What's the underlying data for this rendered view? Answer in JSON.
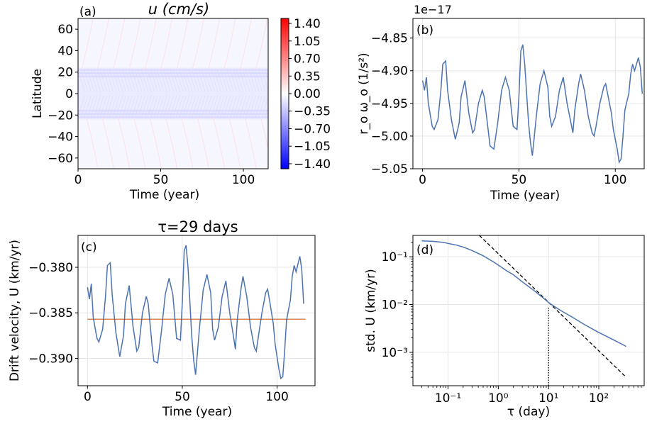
{
  "chart_data": [
    {
      "id": "a",
      "type": "heatmap",
      "panel_label": "(a)",
      "title": "u (cm/s)",
      "xlabel": "Time (year)",
      "ylabel": "Latitude",
      "xlim": [
        0,
        115
      ],
      "ylim": [
        -70,
        70
      ],
      "xticks": [
        0,
        50,
        100
      ],
      "yticks": [
        -60,
        -40,
        -20,
        0,
        20,
        40,
        60
      ],
      "colorbar": {
        "min": -1.5,
        "max": 1.5,
        "ticks": [
          "1.40",
          "1.05",
          "0.70",
          "0.35",
          "0.00",
          "−0.35",
          "−0.70",
          "−1.05",
          "−1.40"
        ],
        "tick_values": [
          1.4,
          1.05,
          0.7,
          0.35,
          0.0,
          -0.35,
          -0.7,
          -1.05,
          -1.4
        ],
        "colormap": "bwr",
        "colors": {
          "neg": "#0000ff",
          "mid": "#ffffff",
          "pos": "#ff0000"
        }
      },
      "field": {
        "background_level": -0.02,
        "equatorial_band_lat": [
          -24,
          24
        ],
        "equatorial_band_level": -0.12,
        "stripe_lats": [
          22,
          19,
          16,
          -16,
          -19,
          -22
        ],
        "stripe_level": -0.3,
        "migrating_streak_level": 0.2,
        "migrating_streak_count": 12
      }
    },
    {
      "id": "b",
      "type": "line",
      "panel_label": "(b)",
      "xlabel": "Time (year)",
      "ylabel": "r_o ω_o (1/s²)",
      "offset_text": "1e−17",
      "xlim": [
        -5,
        115
      ],
      "ylim": [
        -5.05,
        -4.82
      ],
      "xticks": [
        0,
        50,
        100
      ],
      "yticks": [
        -5.05,
        -5.0,
        -4.95,
        -4.9,
        -4.85
      ],
      "ytick_labels": [
        "−5.05",
        "−5.00",
        "−4.95",
        "−4.90",
        "−4.85"
      ],
      "line_color": "#4c72b0",
      "series": [
        {
          "x": [
            0,
            1,
            2,
            3,
            5,
            6,
            8,
            9.5,
            10.5,
            12,
            13,
            15,
            16,
            17,
            19,
            20,
            22,
            24,
            26,
            27,
            29,
            31,
            32,
            34,
            35,
            37,
            39,
            41,
            43,
            45,
            47,
            49,
            50,
            51,
            52,
            53,
            55,
            56,
            57,
            59,
            61,
            63,
            65,
            66,
            67,
            69,
            71,
            73,
            75,
            77,
            78,
            79,
            81,
            82,
            84,
            86,
            88,
            89,
            90,
            92,
            94,
            95,
            96,
            98,
            99,
            101,
            102,
            103,
            104,
            105,
            107,
            108,
            109,
            110,
            112,
            113,
            114
          ],
          "y": [
            -4.915,
            -4.93,
            -4.91,
            -4.95,
            -4.985,
            -4.99,
            -4.975,
            -4.93,
            -4.89,
            -4.885,
            -4.93,
            -4.975,
            -4.99,
            -5.005,
            -4.98,
            -4.94,
            -4.915,
            -4.965,
            -4.995,
            -4.99,
            -4.95,
            -4.93,
            -4.94,
            -4.99,
            -5.015,
            -5.02,
            -4.98,
            -4.93,
            -4.91,
            -4.93,
            -4.985,
            -4.99,
            -4.94,
            -4.87,
            -4.86,
            -4.89,
            -4.98,
            -5.01,
            -5.03,
            -4.97,
            -4.92,
            -4.9,
            -4.925,
            -4.97,
            -4.985,
            -4.97,
            -4.93,
            -4.91,
            -4.95,
            -4.98,
            -4.995,
            -4.96,
            -4.92,
            -4.905,
            -4.93,
            -4.97,
            -4.995,
            -5.0,
            -4.985,
            -4.95,
            -4.925,
            -4.92,
            -4.935,
            -4.965,
            -4.99,
            -5.02,
            -5.04,
            -5.035,
            -5.0,
            -4.96,
            -4.935,
            -4.905,
            -4.89,
            -4.9,
            -4.88,
            -4.895,
            -4.935
          ]
        }
      ]
    },
    {
      "id": "c",
      "type": "line",
      "panel_label": "(c)",
      "title": "τ=29 days",
      "xlabel": "Time (year)",
      "ylabel": "Drift velocity, U (km/yr)",
      "xlim": [
        -5,
        120
      ],
      "ylim": [
        -0.393,
        -0.3765
      ],
      "xticks": [
        0,
        50,
        100
      ],
      "yticks": [
        -0.39,
        -0.385,
        -0.38
      ],
      "ytick_labels": [
        "−0.390",
        "−0.385",
        "−0.380"
      ],
      "line_color": "#4c72b0",
      "mean_line": {
        "value": -0.3857,
        "x_range": [
          0,
          115
        ],
        "color": "#dd8452"
      },
      "series": [
        {
          "x": [
            0,
            1,
            2,
            3,
            5,
            6,
            8,
            9.5,
            10.5,
            12,
            13,
            15,
            16,
            17,
            19,
            20,
            22,
            24,
            26,
            27,
            29,
            31,
            32,
            34,
            35,
            37,
            39,
            41,
            43,
            45,
            47,
            49,
            50,
            51,
            52,
            53,
            55,
            56,
            57,
            59,
            61,
            63,
            65,
            66,
            67,
            69,
            71,
            73,
            75,
            77,
            78,
            79,
            81,
            82,
            84,
            86,
            88,
            89,
            90,
            92,
            94,
            95,
            96,
            98,
            99,
            101,
            102,
            103,
            104,
            105,
            107,
            108,
            109,
            110,
            112,
            113,
            114
          ],
          "y": [
            -0.3822,
            -0.3835,
            -0.3818,
            -0.3855,
            -0.3878,
            -0.3882,
            -0.3868,
            -0.3832,
            -0.3798,
            -0.3795,
            -0.383,
            -0.3872,
            -0.3885,
            -0.3898,
            -0.3875,
            -0.384,
            -0.382,
            -0.3865,
            -0.3892,
            -0.3888,
            -0.385,
            -0.3832,
            -0.384,
            -0.3885,
            -0.3903,
            -0.3905,
            -0.387,
            -0.383,
            -0.3812,
            -0.383,
            -0.3878,
            -0.388,
            -0.3838,
            -0.3782,
            -0.3776,
            -0.38,
            -0.3876,
            -0.3902,
            -0.3918,
            -0.3868,
            -0.3825,
            -0.3808,
            -0.3828,
            -0.3868,
            -0.388,
            -0.3866,
            -0.3832,
            -0.3815,
            -0.385,
            -0.3876,
            -0.389,
            -0.3858,
            -0.3823,
            -0.381,
            -0.3832,
            -0.3866,
            -0.3888,
            -0.3892,
            -0.3878,
            -0.385,
            -0.3828,
            -0.3824,
            -0.3836,
            -0.3862,
            -0.3885,
            -0.3912,
            -0.3922,
            -0.392,
            -0.3892,
            -0.3858,
            -0.3836,
            -0.381,
            -0.3798,
            -0.3805,
            -0.3788,
            -0.3802,
            -0.384
          ]
        }
      ]
    },
    {
      "id": "d",
      "type": "line",
      "panel_label": "(d)",
      "xlabel": "τ (day)",
      "ylabel": "std. U (km/yr)",
      "xscale": "log",
      "yscale": "log",
      "xlim": [
        0.02,
        800
      ],
      "ylim": [
        0.0002,
        0.28
      ],
      "xticks": [
        0.1,
        1,
        10,
        100
      ],
      "xtick_labels": [
        "10⁻¹",
        "10⁰",
        "10¹",
        "10²"
      ],
      "yticks": [
        0.001,
        0.01,
        0.1
      ],
      "ytick_labels": [
        "10⁻³",
        "10⁻²",
        "10⁻¹"
      ],
      "line_color": "#4c72b0",
      "series": [
        {
          "x": [
            0.03,
            0.05,
            0.08,
            0.1,
            0.15,
            0.2,
            0.3,
            0.5,
            0.8,
            1,
            1.5,
            2,
            3,
            5,
            8,
            10,
            15,
            20,
            30,
            50,
            80,
            100,
            150,
            200,
            300,
            350
          ],
          "y": [
            0.215,
            0.21,
            0.2,
            0.19,
            0.175,
            0.16,
            0.135,
            0.105,
            0.078,
            0.067,
            0.05,
            0.042,
            0.03,
            0.02,
            0.0135,
            0.011,
            0.0083,
            0.0069,
            0.0054,
            0.0039,
            0.00295,
            0.0026,
            0.0021,
            0.0018,
            0.00145,
            0.00133
          ]
        }
      ],
      "reference_line": {
        "style": "dashed",
        "color": "#000000",
        "x": [
          0.42,
          350
        ],
        "y": [
          0.28,
          0.0003
        ]
      },
      "vertical_marker": {
        "style": "dotted",
        "color": "#000000",
        "x": 10,
        "y_to": 0.0087
      }
    }
  ]
}
